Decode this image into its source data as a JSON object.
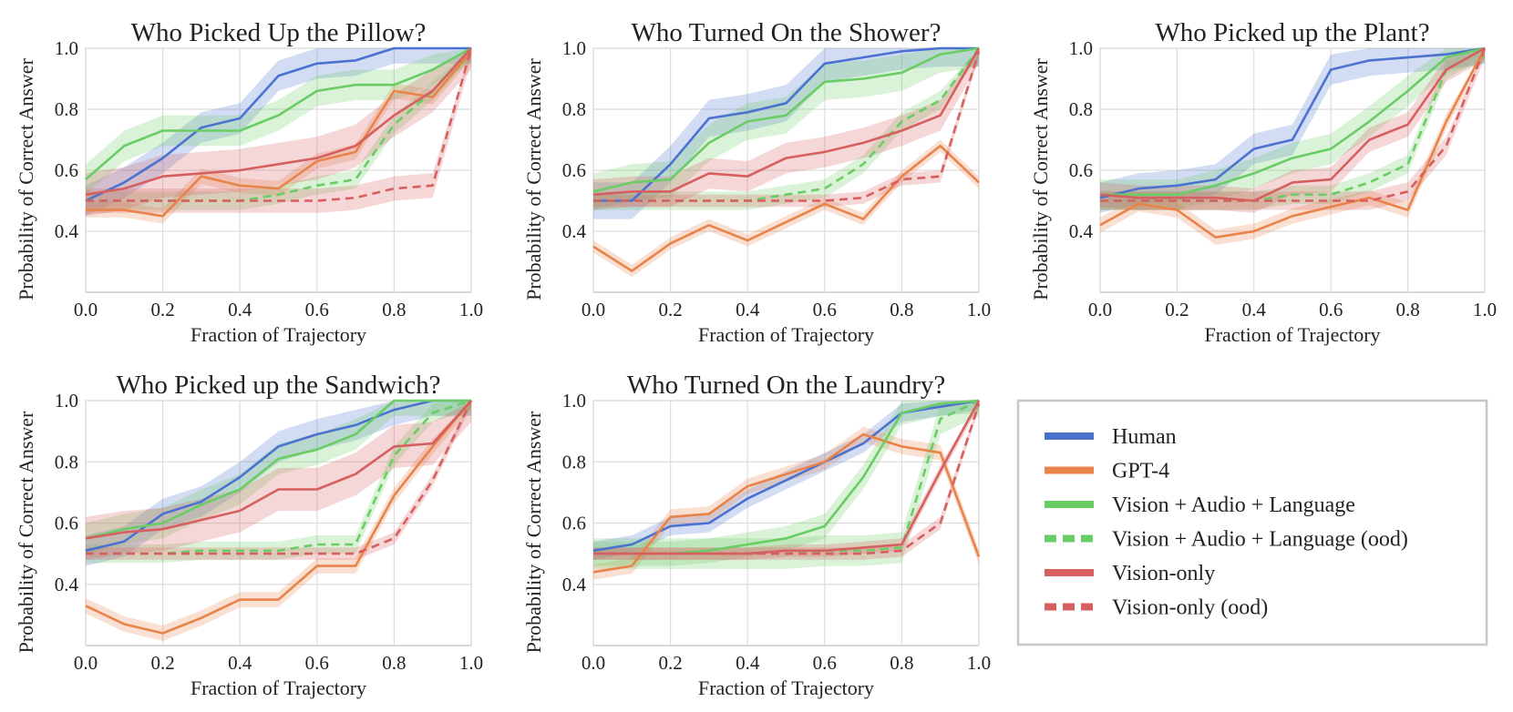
{
  "colors": {
    "human": "#4C72D0",
    "gpt4": "#E8834A",
    "val": "#6ACC64",
    "vision": "#D65F5F",
    "grid": "#DDDDDD",
    "frame": "#BFBFBF"
  },
  "legend": {
    "items": [
      {
        "key": "human",
        "label": "Human",
        "dashed": false
      },
      {
        "key": "gpt4",
        "label": "GPT-4",
        "dashed": false
      },
      {
        "key": "val",
        "label": "Vision + Audio + Language",
        "dashed": false
      },
      {
        "key": "val",
        "label": "Vision + Audio + Language (ood)",
        "dashed": true
      },
      {
        "key": "vision",
        "label": "Vision-only",
        "dashed": false
      },
      {
        "key": "vision",
        "label": "Vision-only (ood)",
        "dashed": true
      }
    ]
  },
  "chart_data": [
    {
      "type": "line",
      "title": "Who Picked Up the Pillow?",
      "xlabel": "Fraction of Trajectory",
      "ylabel": "Probability of Correct Answer",
      "xlim": [
        0,
        1
      ],
      "ylim": [
        0.2,
        1.0
      ],
      "xticks": [
        "0.0",
        "0.2",
        "0.4",
        "0.6",
        "0.8",
        "1.0"
      ],
      "yticks": [
        "0.4",
        "0.6",
        "0.8",
        "1.0"
      ],
      "x": [
        0,
        0.1,
        0.2,
        0.3,
        0.4,
        0.5,
        0.6,
        0.7,
        0.8,
        0.9,
        1.0
      ],
      "series": [
        {
          "name": "Human",
          "key": "human",
          "dashed": false,
          "values": [
            0.5,
            0.56,
            0.64,
            0.74,
            0.77,
            0.91,
            0.95,
            0.96,
            1.0,
            1.0,
            1.0
          ],
          "band": 0.05
        },
        {
          "name": "GPT-4",
          "key": "gpt4",
          "dashed": false,
          "values": [
            0.47,
            0.47,
            0.45,
            0.58,
            0.55,
            0.54,
            0.63,
            0.66,
            0.86,
            0.84,
            0.99
          ],
          "band": 0.025
        },
        {
          "name": "Vision + Audio + Language",
          "key": "val",
          "dashed": false,
          "values": [
            0.57,
            0.68,
            0.73,
            0.73,
            0.73,
            0.78,
            0.86,
            0.88,
            0.88,
            0.93,
            1.0
          ],
          "band": 0.05
        },
        {
          "name": "Vision + Audio + Language (ood)",
          "key": "val",
          "dashed": true,
          "values": [
            0.5,
            0.5,
            0.5,
            0.5,
            0.5,
            0.52,
            0.55,
            0.57,
            0.75,
            0.86,
            1.0
          ],
          "band": 0.03
        },
        {
          "name": "Vision-only",
          "key": "vision",
          "dashed": false,
          "values": [
            0.52,
            0.54,
            0.58,
            0.59,
            0.6,
            0.62,
            0.64,
            0.68,
            0.78,
            0.86,
            1.0
          ],
          "band": 0.07
        },
        {
          "name": "Vision-only (ood)",
          "key": "vision",
          "dashed": true,
          "values": [
            0.5,
            0.5,
            0.5,
            0.5,
            0.5,
            0.5,
            0.5,
            0.51,
            0.54,
            0.55,
            1.0
          ],
          "band": 0.04
        }
      ]
    },
    {
      "type": "line",
      "title": "Who Turned On the Shower?",
      "xlabel": "Fraction of Trajectory",
      "ylabel": "Probability of Correct Answer",
      "xlim": [
        0,
        1
      ],
      "ylim": [
        0.2,
        1.0
      ],
      "xticks": [
        "0.0",
        "0.2",
        "0.4",
        "0.6",
        "0.8",
        "1.0"
      ],
      "yticks": [
        "0.4",
        "0.6",
        "0.8",
        "1.0"
      ],
      "x": [
        0,
        0.1,
        0.2,
        0.3,
        0.4,
        0.5,
        0.6,
        0.7,
        0.8,
        0.9,
        1.0
      ],
      "series": [
        {
          "name": "Human",
          "key": "human",
          "dashed": false,
          "values": [
            0.5,
            0.5,
            0.62,
            0.77,
            0.79,
            0.82,
            0.95,
            0.97,
            0.99,
            1.0,
            1.0
          ],
          "band": 0.06
        },
        {
          "name": "GPT-4",
          "key": "gpt4",
          "dashed": false,
          "values": [
            0.35,
            0.27,
            0.36,
            0.42,
            0.37,
            0.43,
            0.49,
            0.44,
            0.58,
            0.68,
            0.56
          ],
          "band": 0.02
        },
        {
          "name": "Vision + Audio + Language",
          "key": "val",
          "dashed": false,
          "values": [
            0.53,
            0.56,
            0.57,
            0.69,
            0.76,
            0.78,
            0.89,
            0.9,
            0.92,
            0.98,
            1.0
          ],
          "band": 0.06
        },
        {
          "name": "Vision + Audio + Language (ood)",
          "key": "val",
          "dashed": true,
          "values": [
            0.5,
            0.5,
            0.5,
            0.5,
            0.5,
            0.52,
            0.54,
            0.62,
            0.76,
            0.83,
            1.0
          ],
          "band": 0.03
        },
        {
          "name": "Vision-only",
          "key": "vision",
          "dashed": false,
          "values": [
            0.52,
            0.53,
            0.53,
            0.59,
            0.58,
            0.64,
            0.66,
            0.69,
            0.73,
            0.78,
            1.0
          ],
          "band": 0.05
        },
        {
          "name": "Vision-only (ood)",
          "key": "vision",
          "dashed": true,
          "values": [
            0.5,
            0.5,
            0.5,
            0.5,
            0.5,
            0.5,
            0.5,
            0.51,
            0.57,
            0.58,
            0.99
          ],
          "band": 0.02
        }
      ]
    },
    {
      "type": "line",
      "title": "Who Picked up the Plant?",
      "xlabel": "Fraction of Trajectory",
      "ylabel": "Probability of Correct Answer",
      "xlim": [
        0,
        1
      ],
      "ylim": [
        0.2,
        1.0
      ],
      "xticks": [
        "0.0",
        "0.2",
        "0.4",
        "0.6",
        "0.8",
        "1.0"
      ],
      "yticks": [
        "0.4",
        "0.6",
        "0.8",
        "1.0"
      ],
      "x": [
        0,
        0.1,
        0.2,
        0.3,
        0.4,
        0.5,
        0.6,
        0.7,
        0.8,
        0.9,
        1.0
      ],
      "series": [
        {
          "name": "Human",
          "key": "human",
          "dashed": false,
          "values": [
            0.51,
            0.54,
            0.55,
            0.57,
            0.67,
            0.7,
            0.93,
            0.96,
            0.97,
            0.98,
            1.0
          ],
          "band": 0.05
        },
        {
          "name": "GPT-4",
          "key": "gpt4",
          "dashed": false,
          "values": [
            0.42,
            0.49,
            0.47,
            0.38,
            0.4,
            0.45,
            0.48,
            0.51,
            0.47,
            0.76,
            1.0
          ],
          "band": 0.025
        },
        {
          "name": "Vision + Audio + Language",
          "key": "val",
          "dashed": false,
          "values": [
            0.52,
            0.52,
            0.52,
            0.55,
            0.59,
            0.64,
            0.67,
            0.76,
            0.86,
            0.97,
            1.0
          ],
          "band": 0.05
        },
        {
          "name": "Vision + Audio + Language (ood)",
          "key": "val",
          "dashed": true,
          "values": [
            0.5,
            0.5,
            0.5,
            0.5,
            0.5,
            0.52,
            0.52,
            0.56,
            0.62,
            0.93,
            1.0
          ],
          "band": 0.03
        },
        {
          "name": "Vision-only",
          "key": "vision",
          "dashed": false,
          "values": [
            0.52,
            0.51,
            0.51,
            0.51,
            0.5,
            0.56,
            0.57,
            0.7,
            0.75,
            0.93,
            1.0
          ],
          "band": 0.04
        },
        {
          "name": "Vision-only (ood)",
          "key": "vision",
          "dashed": true,
          "values": [
            0.5,
            0.5,
            0.5,
            0.5,
            0.5,
            0.5,
            0.5,
            0.5,
            0.53,
            0.68,
            1.0
          ],
          "band": 0.03
        }
      ]
    },
    {
      "type": "line",
      "title": "Who Picked up the Sandwich?",
      "xlabel": "Fraction of Trajectory",
      "ylabel": "Probability of Correct Answer",
      "xlim": [
        0,
        1
      ],
      "ylim": [
        0.2,
        1.0
      ],
      "xticks": [
        "0.0",
        "0.2",
        "0.4",
        "0.6",
        "0.8",
        "1.0"
      ],
      "yticks": [
        "0.4",
        "0.6",
        "0.8",
        "1.0"
      ],
      "x": [
        0,
        0.1,
        0.2,
        0.3,
        0.4,
        0.5,
        0.6,
        0.7,
        0.8,
        0.9,
        1.0
      ],
      "series": [
        {
          "name": "Human",
          "key": "human",
          "dashed": false,
          "values": [
            0.51,
            0.54,
            0.63,
            0.67,
            0.75,
            0.85,
            0.89,
            0.92,
            0.97,
            1.0,
            1.0
          ],
          "band": 0.05
        },
        {
          "name": "GPT-4",
          "key": "gpt4",
          "dashed": false,
          "values": [
            0.33,
            0.27,
            0.24,
            0.29,
            0.35,
            0.35,
            0.46,
            0.46,
            0.69,
            0.85,
            1.0
          ],
          "band": 0.025
        },
        {
          "name": "Vision + Audio + Language",
          "key": "val",
          "dashed": false,
          "values": [
            0.55,
            0.58,
            0.6,
            0.66,
            0.71,
            0.81,
            0.84,
            0.89,
            1.0,
            1.0,
            1.0
          ],
          "band": 0.05
        },
        {
          "name": "Vision + Audio + Language (ood)",
          "key": "val",
          "dashed": true,
          "values": [
            0.5,
            0.5,
            0.5,
            0.51,
            0.51,
            0.51,
            0.53,
            0.53,
            0.82,
            0.96,
            1.0
          ],
          "band": 0.03
        },
        {
          "name": "Vision-only",
          "key": "vision",
          "dashed": false,
          "values": [
            0.55,
            0.57,
            0.58,
            0.61,
            0.64,
            0.71,
            0.71,
            0.76,
            0.85,
            0.86,
            1.0
          ],
          "band": 0.07
        },
        {
          "name": "Vision-only (ood)",
          "key": "vision",
          "dashed": true,
          "values": [
            0.5,
            0.5,
            0.5,
            0.5,
            0.5,
            0.5,
            0.5,
            0.5,
            0.55,
            0.74,
            1.0
          ],
          "band": 0.02
        }
      ]
    },
    {
      "type": "line",
      "title": "Who Turned On the Laundry?",
      "xlabel": "Fraction of Trajectory",
      "ylabel": "Probability of Correct Answer",
      "xlim": [
        0,
        1
      ],
      "ylim": [
        0.2,
        1.0
      ],
      "xticks": [
        "0.0",
        "0.2",
        "0.4",
        "0.6",
        "0.8",
        "1.0"
      ],
      "yticks": [
        "0.4",
        "0.6",
        "0.8",
        "1.0"
      ],
      "x": [
        0,
        0.1,
        0.2,
        0.3,
        0.4,
        0.5,
        0.6,
        0.7,
        0.8,
        0.9,
        1.0
      ],
      "series": [
        {
          "name": "Human",
          "key": "human",
          "dashed": false,
          "values": [
            0.51,
            0.53,
            0.59,
            0.6,
            0.68,
            0.74,
            0.8,
            0.86,
            0.96,
            0.98,
            1.0
          ],
          "band": 0.03
        },
        {
          "name": "GPT-4",
          "key": "gpt4",
          "dashed": false,
          "values": [
            0.44,
            0.46,
            0.62,
            0.63,
            0.72,
            0.76,
            0.8,
            0.89,
            0.85,
            0.83,
            0.49
          ],
          "band": 0.025
        },
        {
          "name": "Vision + Audio + Language",
          "key": "val",
          "dashed": false,
          "values": [
            0.5,
            0.5,
            0.5,
            0.51,
            0.53,
            0.55,
            0.59,
            0.75,
            0.96,
            0.99,
            1.0
          ],
          "band": 0.04
        },
        {
          "name": "Vision + Audio + Language (ood)",
          "key": "val",
          "dashed": true,
          "values": [
            0.5,
            0.5,
            0.5,
            0.5,
            0.5,
            0.5,
            0.51,
            0.51,
            0.52,
            0.94,
            1.0
          ],
          "band": 0.05
        },
        {
          "name": "Vision-only",
          "key": "vision",
          "dashed": false,
          "values": [
            0.5,
            0.5,
            0.5,
            0.5,
            0.5,
            0.51,
            0.51,
            0.52,
            0.53,
            0.77,
            1.0
          ],
          "band": 0.02
        },
        {
          "name": "Vision-only (ood)",
          "key": "vision",
          "dashed": true,
          "values": [
            0.5,
            0.5,
            0.5,
            0.5,
            0.5,
            0.5,
            0.5,
            0.5,
            0.51,
            0.6,
            0.99
          ],
          "band": 0.02
        }
      ]
    }
  ]
}
